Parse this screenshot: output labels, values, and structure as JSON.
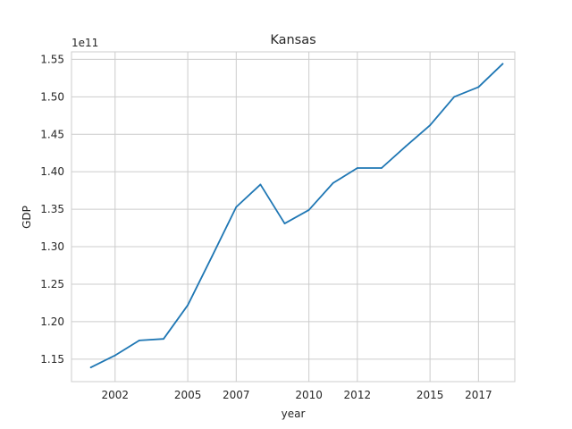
{
  "chart_data": {
    "type": "line",
    "title": "Kansas",
    "xlabel": "year",
    "ylabel": "GDP",
    "y_offset_label": "1e11",
    "y_scale_multiplier": 100000000000,
    "xlim": [
      2000.2,
      2018.5
    ],
    "ylim": [
      1.12,
      1.56
    ],
    "x_ticks": [
      {
        "value": 2002,
        "label": "2002"
      },
      {
        "value": 2005,
        "label": "2005"
      },
      {
        "value": 2007,
        "label": "2007"
      },
      {
        "value": 2010,
        "label": "2010"
      },
      {
        "value": 2012,
        "label": "2012"
      },
      {
        "value": 2015,
        "label": "2015"
      },
      {
        "value": 2017,
        "label": "2017"
      }
    ],
    "y_ticks": [
      {
        "value": 1.15,
        "label": "1.15"
      },
      {
        "value": 1.2,
        "label": "1.20"
      },
      {
        "value": 1.25,
        "label": "1.25"
      },
      {
        "value": 1.3,
        "label": "1.30"
      },
      {
        "value": 1.35,
        "label": "1.35"
      },
      {
        "value": 1.4,
        "label": "1.40"
      },
      {
        "value": 1.45,
        "label": "1.45"
      },
      {
        "value": 1.5,
        "label": "1.50"
      },
      {
        "value": 1.55,
        "label": "1.55"
      }
    ],
    "grid": true,
    "series": [
      {
        "color": "#1f77b4",
        "x": [
          2001,
          2002,
          2003,
          2004,
          2005,
          2006,
          2007,
          2008,
          2009,
          2010,
          2011,
          2012,
          2013,
          2014,
          2015,
          2016,
          2017,
          2018
        ],
        "y": [
          1.139,
          1.155,
          1.175,
          1.177,
          1.222,
          1.287,
          1.353,
          1.383,
          1.331,
          1.349,
          1.385,
          1.405,
          1.405,
          1.434,
          1.462,
          1.5,
          1.513,
          1.544
        ]
      }
    ]
  }
}
